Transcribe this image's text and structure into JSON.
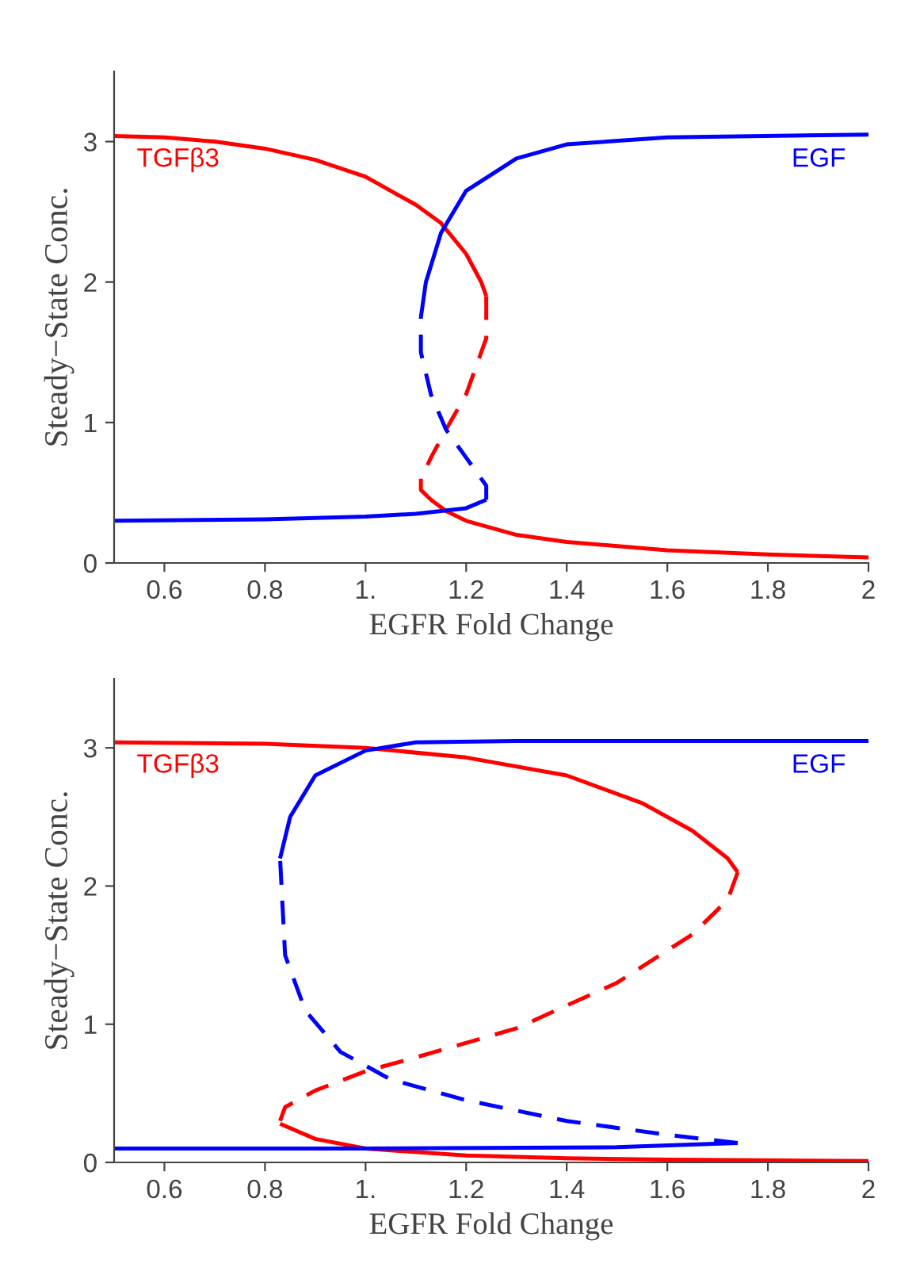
{
  "chart_data": [
    {
      "type": "line",
      "xlabel": "EGFR Fold Change",
      "ylabel": "Steady−State Conc.",
      "xlim": [
        0.5,
        2.0
      ],
      "ylim": [
        0,
        3.5
      ],
      "xticks": [
        0.6,
        0.8,
        {
          "value": 1,
          "label": "1."
        },
        1.2,
        1.4,
        1.6,
        1.8,
        2
      ],
      "yticks": [
        0,
        1,
        2,
        3
      ],
      "grid": false,
      "legend": false,
      "series": [
        {
          "name": "TGFβ3",
          "color": "#ff0000",
          "line_style": "solid",
          "x": [
            0.5,
            0.6,
            0.7,
            0.8,
            0.9,
            1.0,
            1.1,
            1.15,
            1.2,
            1.23,
            1.24
          ],
          "values": [
            3.04,
            3.03,
            3.0,
            2.95,
            2.87,
            2.75,
            2.55,
            2.42,
            2.2,
            2.0,
            1.9
          ]
        },
        {
          "color": "#ff0000",
          "line_style": "dashed",
          "x": [
            1.24,
            1.24,
            1.2,
            1.16,
            1.13,
            1.11
          ],
          "values": [
            1.9,
            1.6,
            1.2,
            0.95,
            0.75,
            0.6
          ]
        },
        {
          "color": "#ff0000",
          "line_style": "solid",
          "x": [
            1.11,
            1.11,
            1.13,
            1.16,
            1.2,
            1.3,
            1.4,
            1.6,
            1.8,
            2.0
          ],
          "values": [
            0.6,
            0.52,
            0.45,
            0.37,
            0.3,
            0.2,
            0.15,
            0.09,
            0.06,
            0.04
          ]
        },
        {
          "name": "EGF",
          "color": "#0000ff",
          "line_style": "solid",
          "x": [
            0.5,
            0.8,
            1.0,
            1.1,
            1.2,
            1.24
          ],
          "values": [
            0.3,
            0.31,
            0.33,
            0.35,
            0.39,
            0.45
          ]
        },
        {
          "color": "#0000ff",
          "line_style": "dashed",
          "x": [
            1.24,
            1.24,
            1.2,
            1.16,
            1.13,
            1.11,
            1.11
          ],
          "values": [
            0.45,
            0.55,
            0.75,
            0.95,
            1.2,
            1.5,
            1.75
          ]
        },
        {
          "color": "#0000ff",
          "line_style": "solid",
          "x": [
            1.11,
            1.12,
            1.15,
            1.2,
            1.3,
            1.4,
            1.6,
            2.0
          ],
          "values": [
            1.75,
            2.0,
            2.35,
            2.65,
            2.88,
            2.98,
            3.03,
            3.05
          ]
        }
      ]
    },
    {
      "type": "line",
      "xlabel": "EGFR Fold Change",
      "ylabel": "Steady−State Conc.",
      "xlim": [
        0.5,
        2.0
      ],
      "ylim": [
        0,
        3.5
      ],
      "xticks": [
        0.6,
        0.8,
        {
          "value": 1,
          "label": "1."
        },
        1.2,
        1.4,
        1.6,
        1.8,
        2
      ],
      "yticks": [
        0,
        1,
        2,
        3
      ],
      "grid": false,
      "legend": false,
      "series": [
        {
          "name": "TGFβ3",
          "color": "#ff0000",
          "line_style": "solid",
          "x": [
            0.5,
            0.8,
            1.0,
            1.2,
            1.4,
            1.55,
            1.65,
            1.72,
            1.74
          ],
          "values": [
            3.04,
            3.03,
            3.0,
            2.93,
            2.8,
            2.6,
            2.4,
            2.2,
            2.1
          ]
        },
        {
          "color": "#ff0000",
          "line_style": "dashed",
          "x": [
            1.74,
            1.72,
            1.65,
            1.5,
            1.3,
            1.1,
            1.0,
            0.9,
            0.84,
            0.83
          ],
          "values": [
            2.1,
            1.9,
            1.65,
            1.3,
            0.97,
            0.76,
            0.66,
            0.52,
            0.4,
            0.3
          ]
        },
        {
          "color": "#ff0000",
          "line_style": "solid",
          "x": [
            0.83,
            0.9,
            1.0,
            1.2,
            1.4,
            1.6,
            2.0
          ],
          "values": [
            0.28,
            0.17,
            0.1,
            0.05,
            0.03,
            0.02,
            0.01
          ]
        },
        {
          "name": "EGF",
          "color": "#0000ff",
          "line_style": "solid",
          "x": [
            0.5,
            1.0,
            1.5,
            1.74
          ],
          "values": [
            0.1,
            0.1,
            0.11,
            0.14
          ]
        },
        {
          "color": "#0000ff",
          "line_style": "dashed",
          "x": [
            1.74,
            1.6,
            1.4,
            1.2,
            1.05,
            0.95,
            0.88,
            0.84,
            0.83
          ],
          "values": [
            0.14,
            0.2,
            0.3,
            0.45,
            0.6,
            0.8,
            1.1,
            1.5,
            2.2
          ]
        },
        {
          "color": "#0000ff",
          "line_style": "solid",
          "x": [
            0.83,
            0.85,
            0.9,
            1.0,
            1.1,
            1.3,
            2.0
          ],
          "values": [
            2.2,
            2.5,
            2.8,
            2.98,
            3.04,
            3.05,
            3.05
          ]
        }
      ]
    }
  ]
}
